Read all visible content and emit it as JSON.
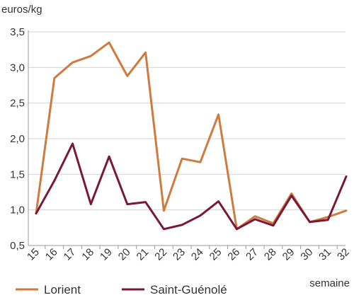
{
  "chart_data": {
    "type": "line",
    "ylabel": "euros/kg",
    "xlabel": "semaine",
    "ylim": [
      0.5,
      3.5
    ],
    "yticks": [
      "0,5",
      "1,0",
      "1,5",
      "2,0",
      "2,5",
      "3,0",
      "3,5"
    ],
    "ytick_values": [
      0.5,
      1.0,
      1.5,
      2.0,
      2.5,
      3.0,
      3.5
    ],
    "categories": [
      "15",
      "16",
      "17",
      "18",
      "19",
      "20",
      "21",
      "22",
      "23",
      "24",
      "25",
      "26",
      "27",
      "28",
      "29",
      "30",
      "31",
      "32"
    ],
    "grid": "horizontal",
    "legend_position": "bottom",
    "series": [
      {
        "name": "Lorient",
        "color": "#cf7a3e",
        "values": [
          0.95,
          2.85,
          3.07,
          3.16,
          3.35,
          2.88,
          3.21,
          0.99,
          1.72,
          1.67,
          2.34,
          0.73,
          0.91,
          0.81,
          1.23,
          0.83,
          0.9,
          0.99
        ]
      },
      {
        "name": "Saint-Guénolé",
        "color": "#7a1838",
        "values": [
          0.95,
          1.41,
          1.93,
          1.08,
          1.75,
          1.08,
          1.11,
          0.73,
          0.79,
          0.92,
          1.12,
          0.73,
          0.87,
          0.78,
          1.2,
          0.83,
          0.86,
          1.47
        ]
      }
    ]
  }
}
